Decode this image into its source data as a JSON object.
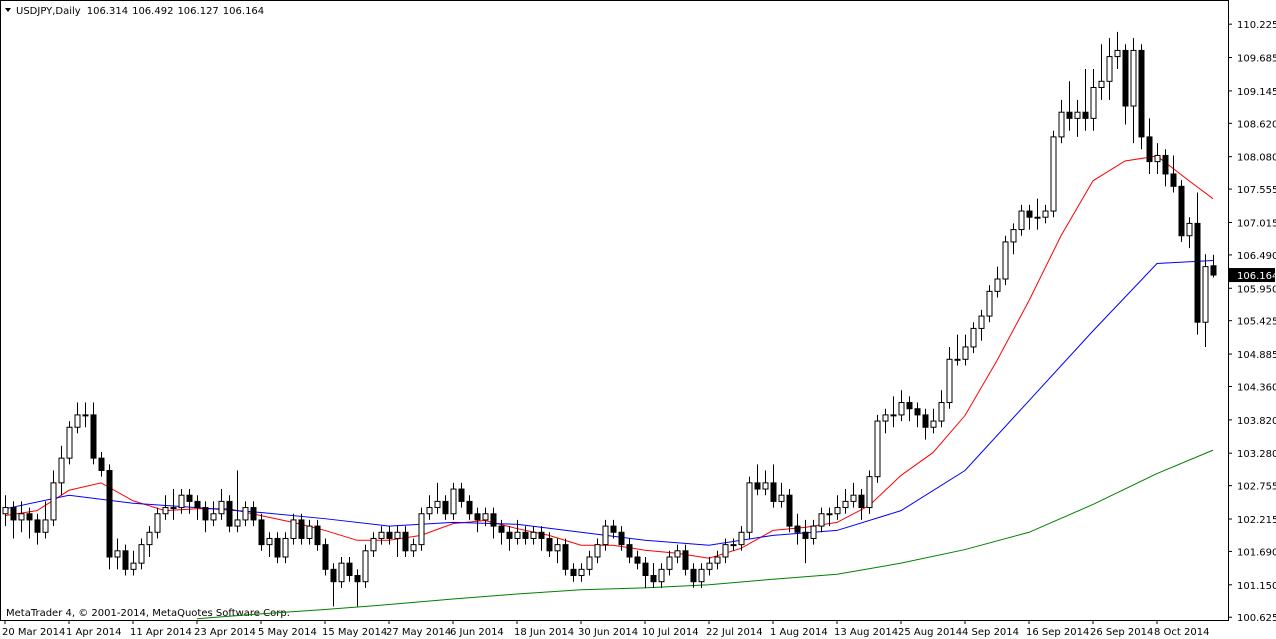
{
  "chart_data": {
    "type": "candlestick",
    "title": "USDJPY,Daily",
    "footer": "MetaTrader 4, © 2001-2014, MetaQuotes Software Corp.",
    "categories": [
      "20 Mar 2014",
      null,
      null,
      null,
      null,
      null,
      null,
      null,
      "1 Apr 2014",
      null,
      null,
      null,
      null,
      null,
      null,
      null,
      "11 Apr 2014",
      null,
      null,
      null,
      null,
      null,
      null,
      null,
      "23 Apr 2014",
      null,
      null,
      null,
      null,
      null,
      null,
      null,
      "5 May 2014",
      null,
      null,
      null,
      null,
      null,
      null,
      null,
      "15 May 2014",
      null,
      null,
      null,
      null,
      null,
      null,
      null,
      "27 May 2014",
      null,
      null,
      null,
      null,
      null,
      null,
      null,
      "6 Jun 2014",
      null,
      null,
      null,
      null,
      null,
      null,
      null,
      "18 Jun 2014",
      null,
      null,
      null,
      null,
      null,
      null,
      null,
      "30 Jun 2014",
      null,
      null,
      null,
      null,
      null,
      null,
      null,
      "10 Jul 2014",
      null,
      null,
      null,
      null,
      null,
      null,
      null,
      "22 Jul 2014",
      null,
      null,
      null,
      null,
      null,
      null,
      null,
      "1 Aug 2014",
      null,
      null,
      null,
      null,
      null,
      null,
      null,
      "13 Aug 2014",
      null,
      null,
      null,
      null,
      null,
      null,
      null,
      "25 Aug 2014",
      null,
      null,
      null,
      null,
      null,
      null,
      null,
      "4 Sep 2014",
      null,
      null,
      null,
      null,
      null,
      null,
      null,
      "16 Sep 2014",
      null,
      null,
      null,
      null,
      null,
      null,
      null,
      "26 Sep 2014",
      null,
      null,
      null,
      null,
      null,
      null,
      null,
      "8 Oct 2014",
      null,
      null,
      null,
      null,
      null,
      null,
      null
    ],
    "candles": [
      [
        102.3,
        102.6,
        102.1,
        102.4
      ],
      [
        102.4,
        102.5,
        101.9,
        102.2
      ],
      [
        102.2,
        102.5,
        102.0,
        102.3
      ],
      [
        102.3,
        102.4,
        101.9,
        102.2
      ],
      [
        102.2,
        102.3,
        101.8,
        102.0
      ],
      [
        102.0,
        102.5,
        101.9,
        102.2
      ],
      [
        102.2,
        103.0,
        102.1,
        102.8
      ],
      [
        102.8,
        103.4,
        102.6,
        103.2
      ],
      [
        103.2,
        103.8,
        103.1,
        103.7
      ],
      [
        103.7,
        104.1,
        103.6,
        103.9
      ],
      [
        103.9,
        104.1,
        103.7,
        103.9
      ],
      [
        103.9,
        104.1,
        103.1,
        103.2
      ],
      [
        103.2,
        103.3,
        102.9,
        103.0
      ],
      [
        103.0,
        103.1,
        101.4,
        101.6
      ],
      [
        101.6,
        101.9,
        101.4,
        101.7
      ],
      [
        101.7,
        101.8,
        101.3,
        101.4
      ],
      [
        101.4,
        101.7,
        101.3,
        101.5
      ],
      [
        101.5,
        101.9,
        101.4,
        101.8
      ],
      [
        101.8,
        102.1,
        101.6,
        102.0
      ],
      [
        102.0,
        102.4,
        101.9,
        102.3
      ],
      [
        102.3,
        102.6,
        102.2,
        102.4
      ],
      [
        102.4,
        102.7,
        102.2,
        102.4
      ],
      [
        102.4,
        102.7,
        102.3,
        102.6
      ],
      [
        102.6,
        102.7,
        102.3,
        102.5
      ],
      [
        102.5,
        102.6,
        102.2,
        102.4
      ],
      [
        102.4,
        102.5,
        102.0,
        102.2
      ],
      [
        102.2,
        102.5,
        102.1,
        102.3
      ],
      [
        102.3,
        102.7,
        102.2,
        102.5
      ],
      [
        102.5,
        102.6,
        102.0,
        102.1
      ],
      [
        102.1,
        103.0,
        102.0,
        102.2
      ],
      [
        102.2,
        102.5,
        102.1,
        102.4
      ],
      [
        102.4,
        102.5,
        102.1,
        102.2
      ],
      [
        102.2,
        102.3,
        101.7,
        101.8
      ],
      [
        101.8,
        102.0,
        101.6,
        101.9
      ],
      [
        101.9,
        102.0,
        101.5,
        101.6
      ],
      [
        101.6,
        102.0,
        101.5,
        101.9
      ],
      [
        101.9,
        102.3,
        101.8,
        102.2
      ],
      [
        102.2,
        102.3,
        101.8,
        101.9
      ],
      [
        101.9,
        102.2,
        101.8,
        102.1
      ],
      [
        102.1,
        102.2,
        101.7,
        101.8
      ],
      [
        101.8,
        101.9,
        101.3,
        101.4
      ],
      [
        101.4,
        101.5,
        100.8,
        101.2
      ],
      [
        101.2,
        101.6,
        101.1,
        101.5
      ],
      [
        101.5,
        101.6,
        101.2,
        101.3
      ],
      [
        101.3,
        101.4,
        100.8,
        101.2
      ],
      [
        101.2,
        101.8,
        101.1,
        101.7
      ],
      [
        101.7,
        102.0,
        101.6,
        101.9
      ],
      [
        101.9,
        102.1,
        101.8,
        102.0
      ],
      [
        102.0,
        102.1,
        101.8,
        101.9
      ],
      [
        101.9,
        102.1,
        101.6,
        102.0
      ],
      [
        102.0,
        102.1,
        101.6,
        101.7
      ],
      [
        101.7,
        101.9,
        101.6,
        101.8
      ],
      [
        101.8,
        102.4,
        101.7,
        102.3
      ],
      [
        102.3,
        102.6,
        102.2,
        102.4
      ],
      [
        102.4,
        102.8,
        102.3,
        102.5
      ],
      [
        102.5,
        102.6,
        102.2,
        102.3
      ],
      [
        102.3,
        102.8,
        102.2,
        102.7
      ],
      [
        102.7,
        102.8,
        102.4,
        102.5
      ],
      [
        102.5,
        102.6,
        102.2,
        102.3
      ],
      [
        102.3,
        102.4,
        102.0,
        102.2
      ],
      [
        102.2,
        102.4,
        102.1,
        102.3
      ],
      [
        102.3,
        102.4,
        101.9,
        102.1
      ],
      [
        102.1,
        102.2,
        101.8,
        102.0
      ],
      [
        102.0,
        102.1,
        101.7,
        101.9
      ],
      [
        101.9,
        102.2,
        101.8,
        102.0
      ],
      [
        102.0,
        102.1,
        101.8,
        101.9
      ],
      [
        101.9,
        102.1,
        101.8,
        102.0
      ],
      [
        102.0,
        102.1,
        101.7,
        101.9
      ],
      [
        101.9,
        102.0,
        101.6,
        101.7
      ],
      [
        101.7,
        101.9,
        101.5,
        101.8
      ],
      [
        101.8,
        101.9,
        101.3,
        101.4
      ],
      [
        101.4,
        101.5,
        101.2,
        101.3
      ],
      [
        101.3,
        101.5,
        101.2,
        101.4
      ],
      [
        101.4,
        101.7,
        101.3,
        101.6
      ],
      [
        101.6,
        101.9,
        101.5,
        101.8
      ],
      [
        101.8,
        102.2,
        101.7,
        102.1
      ],
      [
        102.1,
        102.2,
        101.9,
        102.0
      ],
      [
        102.0,
        102.1,
        101.7,
        101.8
      ],
      [
        101.8,
        101.9,
        101.5,
        101.6
      ],
      [
        101.6,
        101.7,
        101.4,
        101.5
      ],
      [
        101.5,
        101.6,
        101.1,
        101.3
      ],
      [
        101.3,
        101.5,
        101.1,
        101.2
      ],
      [
        101.2,
        101.5,
        101.1,
        101.4
      ],
      [
        101.4,
        101.7,
        101.3,
        101.6
      ],
      [
        101.6,
        101.8,
        101.5,
        101.7
      ],
      [
        101.7,
        101.8,
        101.3,
        101.4
      ],
      [
        101.4,
        101.5,
        101.1,
        101.2
      ],
      [
        101.2,
        101.5,
        101.1,
        101.4
      ],
      [
        101.4,
        101.6,
        101.3,
        101.5
      ],
      [
        101.5,
        101.7,
        101.4,
        101.6
      ],
      [
        101.6,
        101.9,
        101.5,
        101.8
      ],
      [
        101.8,
        101.9,
        101.7,
        101.8
      ],
      [
        101.8,
        102.1,
        101.7,
        102.0
      ],
      [
        102.0,
        102.9,
        101.9,
        102.8
      ],
      [
        102.8,
        103.1,
        102.6,
        102.7
      ],
      [
        102.7,
        103.0,
        102.6,
        102.8
      ],
      [
        102.8,
        103.1,
        102.4,
        102.5
      ],
      [
        102.5,
        102.8,
        102.4,
        102.6
      ],
      [
        102.6,
        102.7,
        102.0,
        102.1
      ],
      [
        102.1,
        102.3,
        101.8,
        102.0
      ],
      [
        102.0,
        102.2,
        101.5,
        101.9
      ],
      [
        101.9,
        102.2,
        101.8,
        102.1
      ],
      [
        102.1,
        102.4,
        102.0,
        102.3
      ],
      [
        102.3,
        102.4,
        102.1,
        102.3
      ],
      [
        102.3,
        102.6,
        102.2,
        102.4
      ],
      [
        102.4,
        102.7,
        102.3,
        102.5
      ],
      [
        102.5,
        102.8,
        102.4,
        102.6
      ],
      [
        102.6,
        102.7,
        102.2,
        102.4
      ],
      [
        102.4,
        103.0,
        102.3,
        102.9
      ],
      [
        102.9,
        103.9,
        102.8,
        103.8
      ],
      [
        103.8,
        104.0,
        103.6,
        103.9
      ],
      [
        103.9,
        104.2,
        103.7,
        103.9
      ],
      [
        103.9,
        104.3,
        103.8,
        104.1
      ],
      [
        104.1,
        104.2,
        103.8,
        104.0
      ],
      [
        104.0,
        104.1,
        103.7,
        103.9
      ],
      [
        103.9,
        104.0,
        103.5,
        103.7
      ],
      [
        103.7,
        104.0,
        103.6,
        103.8
      ],
      [
        103.8,
        104.3,
        103.7,
        104.1
      ],
      [
        104.1,
        105.0,
        104.0,
        104.8
      ],
      [
        104.8,
        105.2,
        104.7,
        104.8
      ],
      [
        104.8,
        105.2,
        104.7,
        105.0
      ],
      [
        105.0,
        105.4,
        104.9,
        105.3
      ],
      [
        105.3,
        105.6,
        105.1,
        105.5
      ],
      [
        105.5,
        106.0,
        105.4,
        105.9
      ],
      [
        105.9,
        106.3,
        105.8,
        106.1
      ],
      [
        106.1,
        106.8,
        106.0,
        106.7
      ],
      [
        106.7,
        107.0,
        106.5,
        106.9
      ],
      [
        106.9,
        107.3,
        106.8,
        107.2
      ],
      [
        107.2,
        107.3,
        106.9,
        107.1
      ],
      [
        107.1,
        107.4,
        106.9,
        107.1
      ],
      [
        107.1,
        107.3,
        107.0,
        107.2
      ],
      [
        107.2,
        108.5,
        107.1,
        108.4
      ],
      [
        108.4,
        109.0,
        108.3,
        108.8
      ],
      [
        108.8,
        109.3,
        108.5,
        108.7
      ],
      [
        108.7,
        109.0,
        108.4,
        108.8
      ],
      [
        108.8,
        109.5,
        108.5,
        108.7
      ],
      [
        108.7,
        109.5,
        108.5,
        109.2
      ],
      [
        109.2,
        109.9,
        109.0,
        109.3
      ],
      [
        109.3,
        110.0,
        109.0,
        109.7
      ],
      [
        109.7,
        110.1,
        109.5,
        109.8
      ],
      [
        109.8,
        109.9,
        108.6,
        108.9
      ],
      [
        108.9,
        110.0,
        108.3,
        109.8
      ],
      [
        109.8,
        109.9,
        108.2,
        108.4
      ],
      [
        108.4,
        108.7,
        107.8,
        108.0
      ],
      [
        108.0,
        108.3,
        107.8,
        108.1
      ],
      [
        108.1,
        108.2,
        107.6,
        107.8
      ],
      [
        107.8,
        108.1,
        107.5,
        107.6
      ],
      [
        107.6,
        107.7,
        106.7,
        106.8
      ],
      [
        106.8,
        107.1,
        106.6,
        107.0
      ],
      [
        107.0,
        107.5,
        105.2,
        105.4
      ],
      [
        105.4,
        106.5,
        105.0,
        106.3
      ],
      [
        106.314,
        106.492,
        106.127,
        106.164
      ]
    ],
    "up_color": "#ffffff",
    "down_color": "#000000",
    "series": [
      {
        "color": "#ff0000",
        "x": [
          0,
          4,
          8,
          12,
          16,
          20,
          24,
          28,
          32,
          36,
          40,
          44,
          48,
          52,
          56,
          60,
          64,
          68,
          72,
          76,
          80,
          84,
          88,
          92,
          96,
          100,
          104,
          108,
          112,
          116,
          120,
          124,
          128,
          132,
          136,
          140,
          144,
          148,
          151
        ],
        "values": [
          102.27,
          102.35,
          102.68,
          102.8,
          102.51,
          102.35,
          102.38,
          102.38,
          102.27,
          102.16,
          102.03,
          101.87,
          101.87,
          101.95,
          102.14,
          102.19,
          102.06,
          101.95,
          101.79,
          101.79,
          101.71,
          101.66,
          101.58,
          101.74,
          102.03,
          102.08,
          102.16,
          102.43,
          102.92,
          103.29,
          103.89,
          104.78,
          105.75,
          106.8,
          107.69,
          108.01,
          108.09,
          107.69,
          107.4
        ]
      },
      {
        "color": "#0000ff",
        "x": [
          0,
          8,
          16,
          24,
          32,
          40,
          48,
          56,
          64,
          72,
          80,
          88,
          96,
          104,
          112,
          120,
          128,
          136,
          144,
          151
        ],
        "values": [
          102.38,
          102.6,
          102.47,
          102.4,
          102.32,
          102.22,
          102.1,
          102.16,
          102.13,
          102.0,
          101.87,
          101.79,
          101.95,
          102.03,
          102.35,
          103.0,
          104.13,
          105.26,
          106.35,
          106.4
        ]
      },
      {
        "color": "#008000",
        "x": [
          24,
          32,
          40,
          48,
          56,
          64,
          72,
          80,
          88,
          96,
          104,
          112,
          120,
          128,
          136,
          144,
          151
        ],
        "values": [
          100.6,
          100.68,
          100.75,
          100.83,
          100.92,
          101.0,
          101.07,
          101.1,
          101.15,
          101.24,
          101.32,
          101.5,
          101.72,
          102.0,
          102.45,
          102.95,
          103.33
        ]
      }
    ],
    "ylim": [
      100.58,
      110.6
    ],
    "yticks": [
      110.225,
      109.685,
      109.145,
      {
        "value": 108.62,
        "label": "108.620"
      },
      {
        "value": 108.08,
        "label": "108.080"
      },
      107.555,
      107.015,
      {
        "value": 106.49,
        "label": "106.490"
      },
      {
        "value": 105.95,
        "label": "105.950"
      },
      105.425,
      104.885,
      {
        "value": 104.36,
        "label": "104.360"
      },
      {
        "value": 103.82,
        "label": "103.820"
      },
      {
        "value": 103.28,
        "label": "103.280"
      },
      102.755,
      102.215,
      {
        "value": 101.69,
        "label": "101.690"
      },
      {
        "value": 101.15,
        "label": "101.150"
      },
      100.625
    ]
  }
}
